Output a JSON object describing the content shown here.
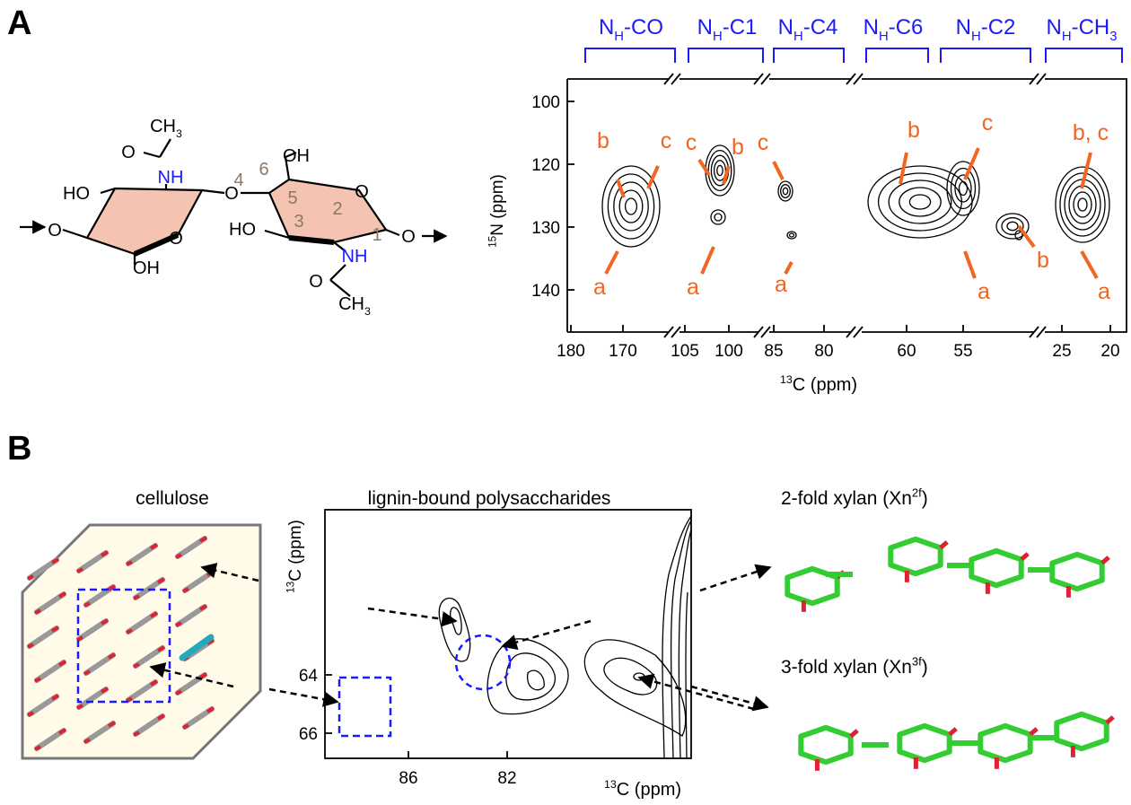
{
  "panel_a": {
    "label": "A",
    "headers": [
      [
        "N",
        "H",
        "-CO"
      ],
      [
        "N",
        "H",
        "-C1"
      ],
      [
        "N",
        "H",
        "-C4"
      ],
      [
        "N",
        "H",
        "-C6"
      ],
      [
        "N",
        "H",
        "-C2"
      ],
      [
        "N",
        "H",
        "-CH",
        "3"
      ]
    ],
    "y_axis": {
      "label": [
        "15",
        "N (ppm)"
      ],
      "ticks": [
        100,
        120,
        130,
        140
      ]
    },
    "x_axis": {
      "label": [
        "13",
        "C (ppm)"
      ],
      "ticks": [
        180,
        170,
        105,
        100,
        85,
        80,
        60,
        55,
        25,
        20
      ]
    },
    "peak_labels": [
      "b",
      "c",
      "a",
      "c",
      "b",
      "a",
      "c",
      "a",
      "b",
      "c",
      "b",
      "a",
      "b, c",
      "a"
    ],
    "molecule": {
      "labels": [
        [
          "CH",
          "3"
        ],
        [
          "O"
        ],
        [
          "NH"
        ],
        [
          "HO"
        ],
        [
          "O"
        ],
        [
          "OH"
        ],
        [
          "O"
        ],
        [
          "O"
        ],
        [
          "4"
        ],
        [
          "6"
        ],
        [
          "OH"
        ],
        [
          "5"
        ],
        [
          "O"
        ],
        [
          "3"
        ],
        [
          "2"
        ],
        [
          "1"
        ],
        [
          "HO"
        ],
        [
          "O"
        ],
        [
          "NH"
        ],
        [
          "O"
        ],
        [
          "CH",
          "3"
        ]
      ]
    }
  },
  "panel_b": {
    "label": "B",
    "cellulose": "cellulose",
    "spectrum": {
      "title": "lignin-bound polysaccharides",
      "y_ticks": [
        64,
        66
      ],
      "x_ticks": [
        86,
        82
      ],
      "y_label": [
        "13",
        "C (ppm)"
      ],
      "x_label": [
        "13",
        "C (ppm)"
      ]
    },
    "xylans": [
      [
        "2-fold xylan (Xn",
        "2f",
        ")"
      ],
      [
        "3-fold xylan (Xn",
        "3f",
        ")"
      ]
    ]
  }
}
